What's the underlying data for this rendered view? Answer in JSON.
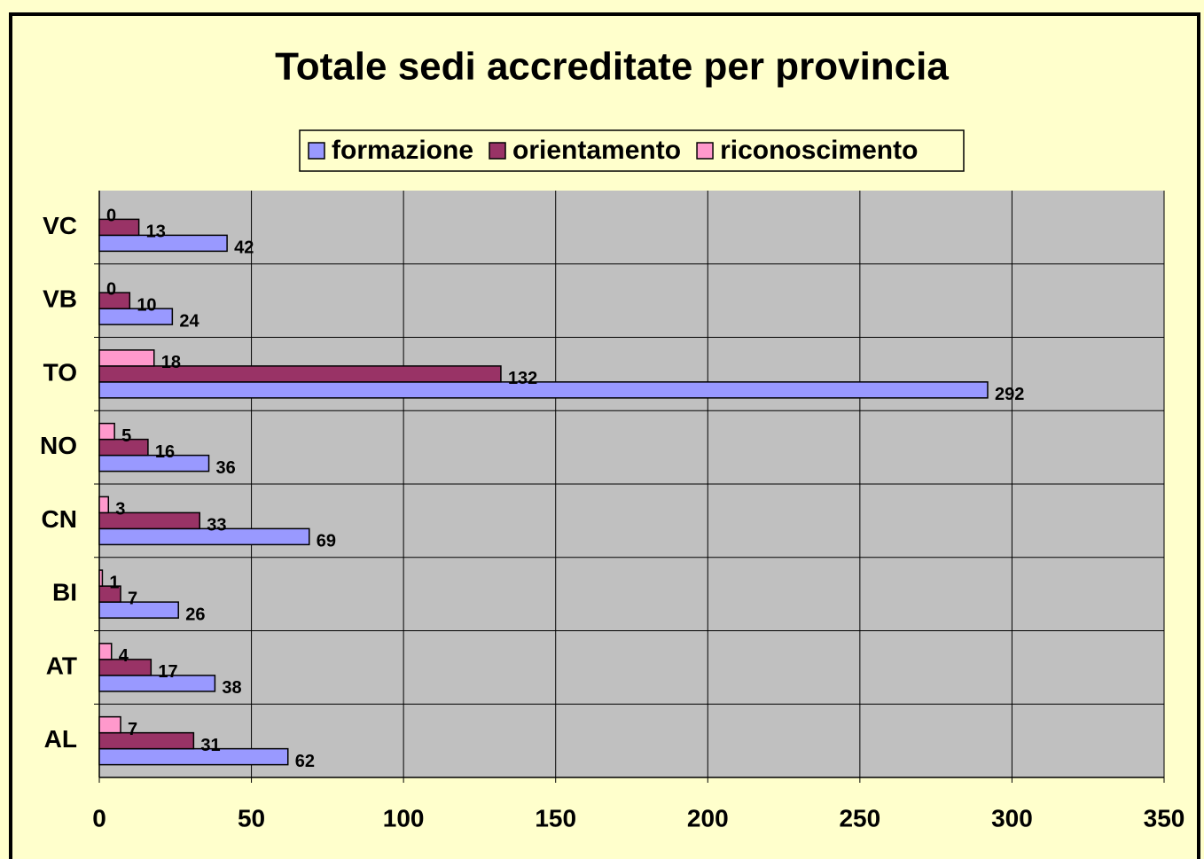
{
  "chart_data": {
    "type": "hbar",
    "title": "Totale sedi accreditate per provincia",
    "categories": [
      "AL",
      "AT",
      "BI",
      "CN",
      "NO",
      "TO",
      "VB",
      "VC"
    ],
    "series": [
      {
        "name": "formazione",
        "color": "#9999ff",
        "values": [
          62,
          38,
          26,
          69,
          36,
          292,
          24,
          42
        ]
      },
      {
        "name": "orientamento",
        "color": "#993366",
        "values": [
          31,
          17,
          7,
          33,
          16,
          132,
          10,
          13
        ]
      },
      {
        "name": "riconoscimento",
        "color": "#ff99cc",
        "values": [
          7,
          4,
          1,
          3,
          5,
          18,
          0,
          0
        ]
      }
    ],
    "xlim": [
      0,
      350
    ],
    "xticks": [
      0,
      50,
      100,
      150,
      200,
      250,
      300,
      350
    ],
    "grid": true,
    "legend": "top"
  }
}
